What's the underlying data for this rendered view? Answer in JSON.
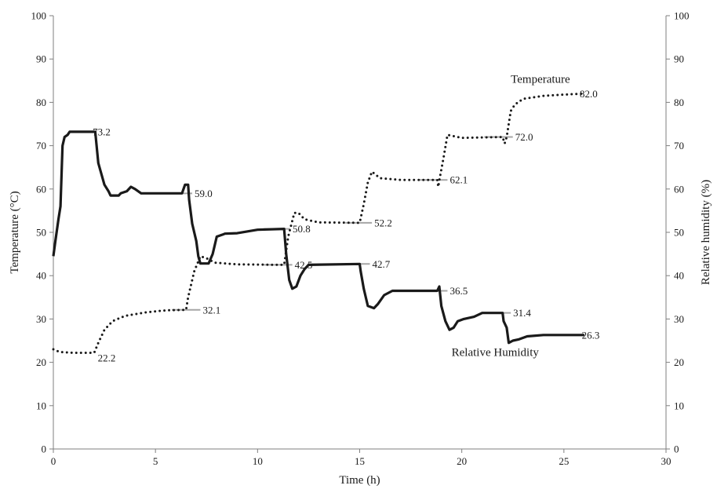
{
  "chart_data": {
    "type": "line",
    "x_axis": {
      "label": "Time (h)",
      "range": [
        0,
        30
      ],
      "ticks": [
        0,
        5,
        10,
        15,
        20,
        25,
        30
      ]
    },
    "y_left_axis": {
      "label": "Temperature (°C)",
      "range": [
        0,
        100
      ],
      "ticks": [
        0,
        10,
        20,
        30,
        40,
        50,
        60,
        70,
        80,
        90,
        100
      ]
    },
    "y_right_axis": {
      "label": "Relative humidity (%)",
      "range": [
        0,
        100
      ],
      "ticks": [
        0,
        10,
        20,
        30,
        40,
        50,
        60,
        70,
        80,
        90,
        100
      ]
    },
    "grid": false,
    "legend": "none (series labelled directly on the plot)",
    "series": [
      {
        "name": "Temperature",
        "axis": "left",
        "style": "dotted",
        "color": "#1a1a1a",
        "points": [
          [
            0,
            23.0
          ],
          [
            0.3,
            22.4
          ],
          [
            1.0,
            22.2
          ],
          [
            2.0,
            22.2
          ],
          [
            2.2,
            24.5
          ],
          [
            2.5,
            27.5
          ],
          [
            2.9,
            29.5
          ],
          [
            3.5,
            30.7
          ],
          [
            4.5,
            31.5
          ],
          [
            5.5,
            32.0
          ],
          [
            6.5,
            32.1
          ],
          [
            6.6,
            35.0
          ],
          [
            6.9,
            41.0
          ],
          [
            7.2,
            44.5
          ],
          [
            7.5,
            44.0
          ],
          [
            7.9,
            43.0
          ],
          [
            9.0,
            42.6
          ],
          [
            11.0,
            42.5
          ],
          [
            11.3,
            42.5
          ],
          [
            11.5,
            49.0
          ],
          [
            11.8,
            54.5
          ],
          [
            12.0,
            54.5
          ],
          [
            12.3,
            53.0
          ],
          [
            13.0,
            52.3
          ],
          [
            15.0,
            52.2
          ],
          [
            15.2,
            56.5
          ],
          [
            15.4,
            61.5
          ],
          [
            15.6,
            64.0
          ],
          [
            16.0,
            62.5
          ],
          [
            17.0,
            62.1
          ],
          [
            18.8,
            62.1
          ],
          [
            18.85,
            60.5
          ],
          [
            18.9,
            62.0
          ],
          [
            19.1,
            67.0
          ],
          [
            19.3,
            72.5
          ],
          [
            19.5,
            72.3
          ],
          [
            20.0,
            71.8
          ],
          [
            21.0,
            71.9
          ],
          [
            22.0,
            72.0
          ],
          [
            22.1,
            70.5
          ],
          [
            22.2,
            72.0
          ],
          [
            22.4,
            78.0
          ],
          [
            22.6,
            79.5
          ],
          [
            23.0,
            80.8
          ],
          [
            24.0,
            81.5
          ],
          [
            25.0,
            81.8
          ],
          [
            25.9,
            82.0
          ]
        ]
      },
      {
        "name": "Relative Humidity",
        "axis": "right",
        "style": "solid",
        "color": "#1a1a1a",
        "points": [
          [
            0,
            44.5
          ],
          [
            0.1,
            48.0
          ],
          [
            0.25,
            53.0
          ],
          [
            0.35,
            56.0
          ],
          [
            0.4,
            63.0
          ],
          [
            0.45,
            70.0
          ],
          [
            0.55,
            72.0
          ],
          [
            0.7,
            72.5
          ],
          [
            0.8,
            73.2
          ],
          [
            2.05,
            73.2
          ],
          [
            2.2,
            66.0
          ],
          [
            2.5,
            61.0
          ],
          [
            2.7,
            59.5
          ],
          [
            2.8,
            58.5
          ],
          [
            3.2,
            58.5
          ],
          [
            3.3,
            59.0
          ],
          [
            3.6,
            59.5
          ],
          [
            3.8,
            60.5
          ],
          [
            4.0,
            60.0
          ],
          [
            4.3,
            59.0
          ],
          [
            5.0,
            59.0
          ],
          [
            6.3,
            59.0
          ],
          [
            6.45,
            61.0
          ],
          [
            6.6,
            61.0
          ],
          [
            6.65,
            57.5
          ],
          [
            6.8,
            52.0
          ],
          [
            7.0,
            48.0
          ],
          [
            7.1,
            44.5
          ],
          [
            7.2,
            42.8
          ],
          [
            7.6,
            42.8
          ],
          [
            7.8,
            45.0
          ],
          [
            8.0,
            49.0
          ],
          [
            8.3,
            49.5
          ],
          [
            8.4,
            49.7
          ],
          [
            9.0,
            49.8
          ],
          [
            10.0,
            50.6
          ],
          [
            11.3,
            50.8
          ],
          [
            11.4,
            45.0
          ],
          [
            11.55,
            39.0
          ],
          [
            11.7,
            37.0
          ],
          [
            11.9,
            37.5
          ],
          [
            12.1,
            40.0
          ],
          [
            12.3,
            41.5
          ],
          [
            12.5,
            42.5
          ],
          [
            15.0,
            42.7
          ],
          [
            15.05,
            41.0
          ],
          [
            15.2,
            37.0
          ],
          [
            15.4,
            33.0
          ],
          [
            15.7,
            32.5
          ],
          [
            15.9,
            33.5
          ],
          [
            16.2,
            35.5
          ],
          [
            16.6,
            36.5
          ],
          [
            18.8,
            36.5
          ],
          [
            18.9,
            37.5
          ],
          [
            19.0,
            33.0
          ],
          [
            19.2,
            29.5
          ],
          [
            19.4,
            27.5
          ],
          [
            19.6,
            28.0
          ],
          [
            19.8,
            29.5
          ],
          [
            20.1,
            30.0
          ],
          [
            20.6,
            30.5
          ],
          [
            21.0,
            31.4
          ],
          [
            22.0,
            31.4
          ],
          [
            22.05,
            29.5
          ],
          [
            22.2,
            28.0
          ],
          [
            22.3,
            24.5
          ],
          [
            22.5,
            25.0
          ],
          [
            22.8,
            25.3
          ],
          [
            23.2,
            26.0
          ],
          [
            24.0,
            26.3
          ],
          [
            26.0,
            26.3
          ]
        ]
      }
    ],
    "series_labels": [
      {
        "text": "Temperature",
        "x": 22.4,
        "y": 84.5
      },
      {
        "text": "Relative Humidity",
        "x": 19.5,
        "y": 21.5
      }
    ],
    "setpoints": [
      {
        "series": "Temperature",
        "from": 5.8,
        "to": 7.2,
        "value": 32.1,
        "label": "32.1"
      },
      {
        "series": "Temperature",
        "from": 10.3,
        "to": 11.7,
        "value": 42.5,
        "label": "42.5"
      },
      {
        "series": "Temperature",
        "from": 14.3,
        "to": 15.6,
        "value": 52.2,
        "label": "52.2"
      },
      {
        "series": "Temperature",
        "from": 17.9,
        "to": 19.3,
        "value": 62.1,
        "label": "62.1"
      },
      {
        "series": "Temperature",
        "from": 21.1,
        "to": 22.5,
        "value": 72.0,
        "label": "72.0"
      },
      {
        "series": "Relative Humidity",
        "from": 5.6,
        "to": 6.8,
        "value": 59.0,
        "label": "59.0"
      },
      {
        "series": "Relative Humidity",
        "from": 10.3,
        "to": 11.6,
        "value": 50.8,
        "label": "50.8"
      },
      {
        "series": "Relative Humidity",
        "from": 14.3,
        "to": 15.5,
        "value": 42.7,
        "label": "42.7"
      },
      {
        "series": "Relative Humidity",
        "from": 17.9,
        "to": 19.3,
        "value": 36.5,
        "label": "36.5"
      },
      {
        "series": "Relative Humidity",
        "from": 21.0,
        "to": 22.4,
        "value": 31.4,
        "label": "31.4"
      }
    ],
    "point_labels": [
      {
        "series": "Relative Humidity",
        "text": "73.2",
        "x": 1.85,
        "y": 73.2
      },
      {
        "series": "Temperature",
        "text": "22.2",
        "x": 2.1,
        "y": 21.0
      },
      {
        "series": "Temperature",
        "text": "82.0",
        "x": 25.7,
        "y": 82.0
      },
      {
        "series": "Relative Humidity",
        "text": "26.3",
        "x": 25.8,
        "y": 26.3
      }
    ],
    "setpoint_color": "#a6a6a6"
  }
}
